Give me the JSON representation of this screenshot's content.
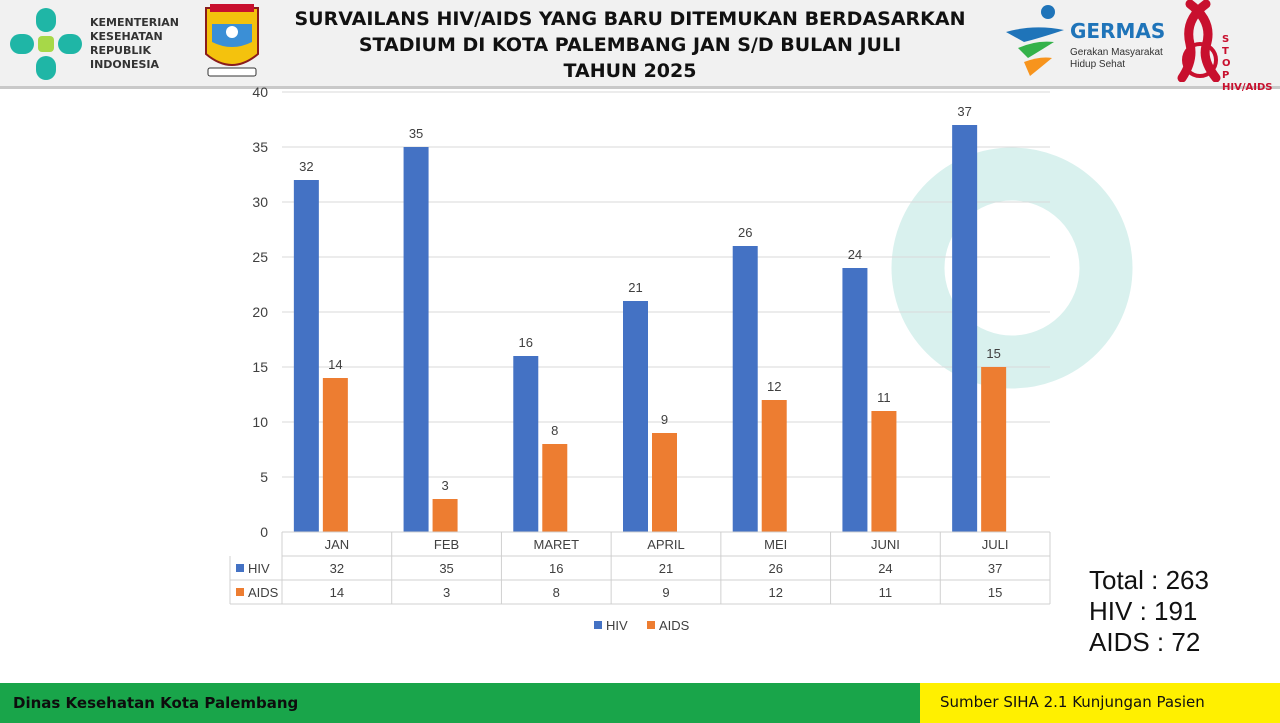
{
  "header": {
    "title_lines": [
      "SURVAILANS HIV/AIDS YANG BARU DITEMUKAN BERDASARKAN",
      "STADIUM DI KOTA PALEMBANG JAN S/D BULAN JULI",
      "TAHUN 2025"
    ],
    "kemenkes_lines": [
      "KEMENTERIAN",
      "KESEHATAN",
      "REPUBLIK",
      "INDONESIA"
    ],
    "germas_word": "GERMAS",
    "germas_sub": [
      "Gerakan Masyarakat",
      "Hidup Sehat"
    ],
    "stop_lines": [
      "S",
      "T",
      "O",
      "P",
      "HIV/AIDS"
    ]
  },
  "chart_data": {
    "type": "bar",
    "categories": [
      "JAN",
      "FEB",
      "MARET",
      "APRIL",
      "MEI",
      "JUNI",
      "JULI"
    ],
    "series": [
      {
        "name": "HIV",
        "values": [
          32,
          35,
          16,
          21,
          26,
          24,
          37
        ],
        "color": "#4472c4"
      },
      {
        "name": "AIDS",
        "values": [
          14,
          3,
          8,
          9,
          12,
          11,
          15
        ],
        "color": "#ed7d31"
      }
    ],
    "ylim": [
      0,
      40
    ],
    "yticks": [
      0,
      5,
      10,
      15,
      20,
      25,
      30,
      35,
      40
    ],
    "grid": true,
    "data_table": true,
    "legend_position": "bottom",
    "data_labels": true
  },
  "totals": {
    "total": "Total : 263",
    "hiv": "HIV : 191",
    "aids": "AIDS : 72"
  },
  "footer": {
    "left": "Dinas Kesehatan Kota Palembang",
    "right": "Sumber SIHA 2.1 Kunjungan Pasien"
  },
  "colors": {
    "footer_left": "#19a54a",
    "footer_right": "#fff000",
    "watermark": "#d9f1ee"
  }
}
